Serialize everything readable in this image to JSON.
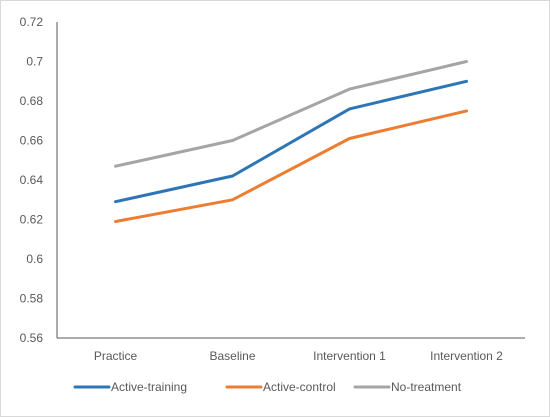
{
  "chart_data": {
    "type": "line",
    "title": "",
    "xlabel": "",
    "ylabel": "",
    "categories": [
      "Practice",
      "Baseline",
      "Intervention 1",
      "Intervention 2"
    ],
    "ylim": [
      0.56,
      0.72
    ],
    "yticks": [
      0.56,
      0.58,
      0.6,
      0.62,
      0.64,
      0.66,
      0.68,
      0.7,
      0.72
    ],
    "ytick_labels": [
      "0.56",
      "0.58",
      "0.6",
      "0.62",
      "0.64",
      "0.66",
      "0.68",
      "0.7",
      "0.72"
    ],
    "grid": false,
    "legend_position": "bottom",
    "series": [
      {
        "name": "Active-training",
        "color": "#2e75b6",
        "values": [
          0.629,
          0.642,
          0.676,
          0.69
        ]
      },
      {
        "name": "Active-control",
        "color": "#ed7d31",
        "values": [
          0.619,
          0.63,
          0.661,
          0.675
        ]
      },
      {
        "name": "No-treatment",
        "color": "#a5a5a5",
        "values": [
          0.647,
          0.66,
          0.686,
          0.7
        ]
      }
    ]
  }
}
